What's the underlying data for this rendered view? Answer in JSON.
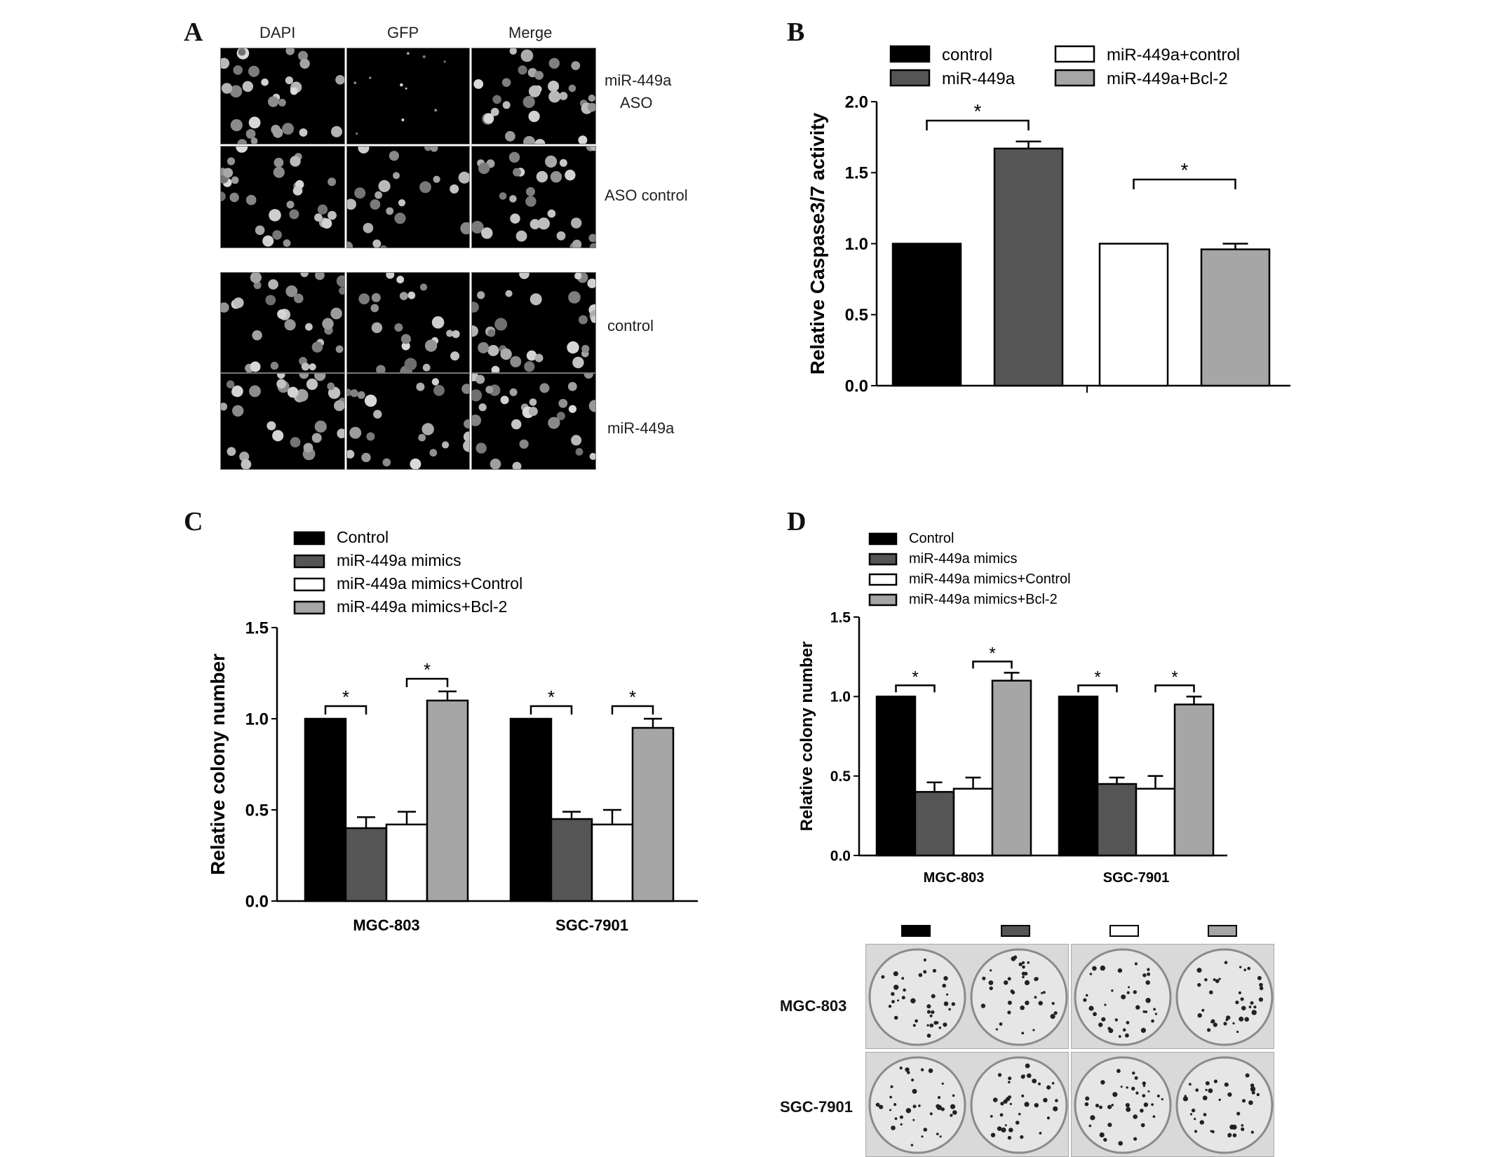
{
  "panels": {
    "A": {
      "letter": "A",
      "columns": [
        "DAPI",
        "GFP",
        "Merge"
      ],
      "rows": [
        {
          "label_line1": "miR-449a",
          "label_line2": "ASO"
        },
        {
          "label_line1": "ASO control",
          "label_line2": ""
        },
        {
          "label_line1": "control",
          "label_line2": ""
        },
        {
          "label_line1": "miR-449a",
          "label_line2": ""
        }
      ]
    },
    "B": {
      "letter": "B"
    },
    "C": {
      "letter": "C"
    },
    "D": {
      "letter": "D",
      "plate_rows": [
        "MGC-803",
        "SGC-7901"
      ],
      "swatch_colors": [
        "#000000",
        "#555555",
        "#ffffff",
        "#a6a6a6"
      ]
    }
  },
  "colors": {
    "control": "#000000",
    "mir449a": "#555555",
    "mir449a_control": "#ffffff",
    "mir449a_bcl2": "#a6a6a6"
  },
  "chart_data": [
    {
      "id": "B",
      "type": "bar",
      "ylabel": "Relative Caspase3/7 activity",
      "ylim": [
        0,
        2.0
      ],
      "yticks": [
        "0.0",
        "0.5",
        "1.0",
        "1.5",
        "2.0"
      ],
      "categories": [
        ""
      ],
      "legend_placement": "top",
      "series": [
        {
          "name": "control",
          "values": [
            1.0
          ],
          "errors": [
            0.0
          ],
          "color": "#000000"
        },
        {
          "name": "miR-449a",
          "values": [
            1.67
          ],
          "errors": [
            0.05
          ],
          "color": "#555555"
        },
        {
          "name": "miR-449a+control",
          "values": [
            1.0
          ],
          "errors": [
            0.0
          ],
          "color": "#ffffff"
        },
        {
          "name": "miR-449a+Bcl-2",
          "values": [
            0.96
          ],
          "errors": [
            0.04
          ],
          "color": "#a6a6a6"
        }
      ],
      "significance": [
        {
          "from": 0,
          "to": 1,
          "label": "*"
        },
        {
          "from": 2,
          "to": 3,
          "label": "*"
        }
      ]
    },
    {
      "id": "C",
      "type": "bar",
      "ylabel": "Relative colony number",
      "ylim": [
        0,
        1.5
      ],
      "yticks": [
        "0.0",
        "0.5",
        "1.0",
        "1.5"
      ],
      "categories": [
        "MGC-803",
        "SGC-7901"
      ],
      "legend_placement": "top-left",
      "series": [
        {
          "name": "Control",
          "values": [
            1.0,
            1.0
          ],
          "errors": [
            0.0,
            0.0
          ],
          "color": "#000000"
        },
        {
          "name": "miR-449a mimics",
          "values": [
            0.4,
            0.45
          ],
          "errors": [
            0.06,
            0.04
          ],
          "color": "#555555"
        },
        {
          "name": "miR-449a mimics+Control",
          "values": [
            0.42,
            0.42
          ],
          "errors": [
            0.07,
            0.08
          ],
          "color": "#ffffff"
        },
        {
          "name": "miR-449a mimics+Bcl-2",
          "values": [
            1.1,
            0.95
          ],
          "errors": [
            0.05,
            0.05
          ],
          "color": "#a6a6a6"
        }
      ],
      "significance": [
        {
          "category": 0,
          "from": 0,
          "to": 1,
          "label": "*"
        },
        {
          "category": 0,
          "from": 2,
          "to": 3,
          "label": "*"
        },
        {
          "category": 1,
          "from": 0,
          "to": 1,
          "label": "*"
        },
        {
          "category": 1,
          "from": 2,
          "to": 3,
          "label": "*"
        }
      ]
    },
    {
      "id": "D",
      "type": "bar",
      "ylabel": "Relative colony number",
      "ylim": [
        0,
        1.5
      ],
      "yticks": [
        "0.0",
        "0.5",
        "1.0",
        "1.5"
      ],
      "categories": [
        "MGC-803",
        "SGC-7901"
      ],
      "legend_placement": "top-left",
      "series": [
        {
          "name": "Control",
          "values": [
            1.0,
            1.0
          ],
          "errors": [
            0.0,
            0.0
          ],
          "color": "#000000"
        },
        {
          "name": "miR-449a mimics",
          "values": [
            0.4,
            0.45
          ],
          "errors": [
            0.06,
            0.04
          ],
          "color": "#555555"
        },
        {
          "name": "miR-449a mimics+Control",
          "values": [
            0.42,
            0.42
          ],
          "errors": [
            0.07,
            0.08
          ],
          "color": "#ffffff"
        },
        {
          "name": "miR-449a mimics+Bcl-2",
          "values": [
            1.1,
            0.95
          ],
          "errors": [
            0.05,
            0.05
          ],
          "color": "#a6a6a6"
        }
      ],
      "significance": [
        {
          "category": 0,
          "from": 0,
          "to": 1,
          "label": "*"
        },
        {
          "category": 0,
          "from": 2,
          "to": 3,
          "label": "*"
        },
        {
          "category": 1,
          "from": 0,
          "to": 1,
          "label": "*"
        },
        {
          "category": 1,
          "from": 2,
          "to": 3,
          "label": "*"
        }
      ]
    }
  ]
}
